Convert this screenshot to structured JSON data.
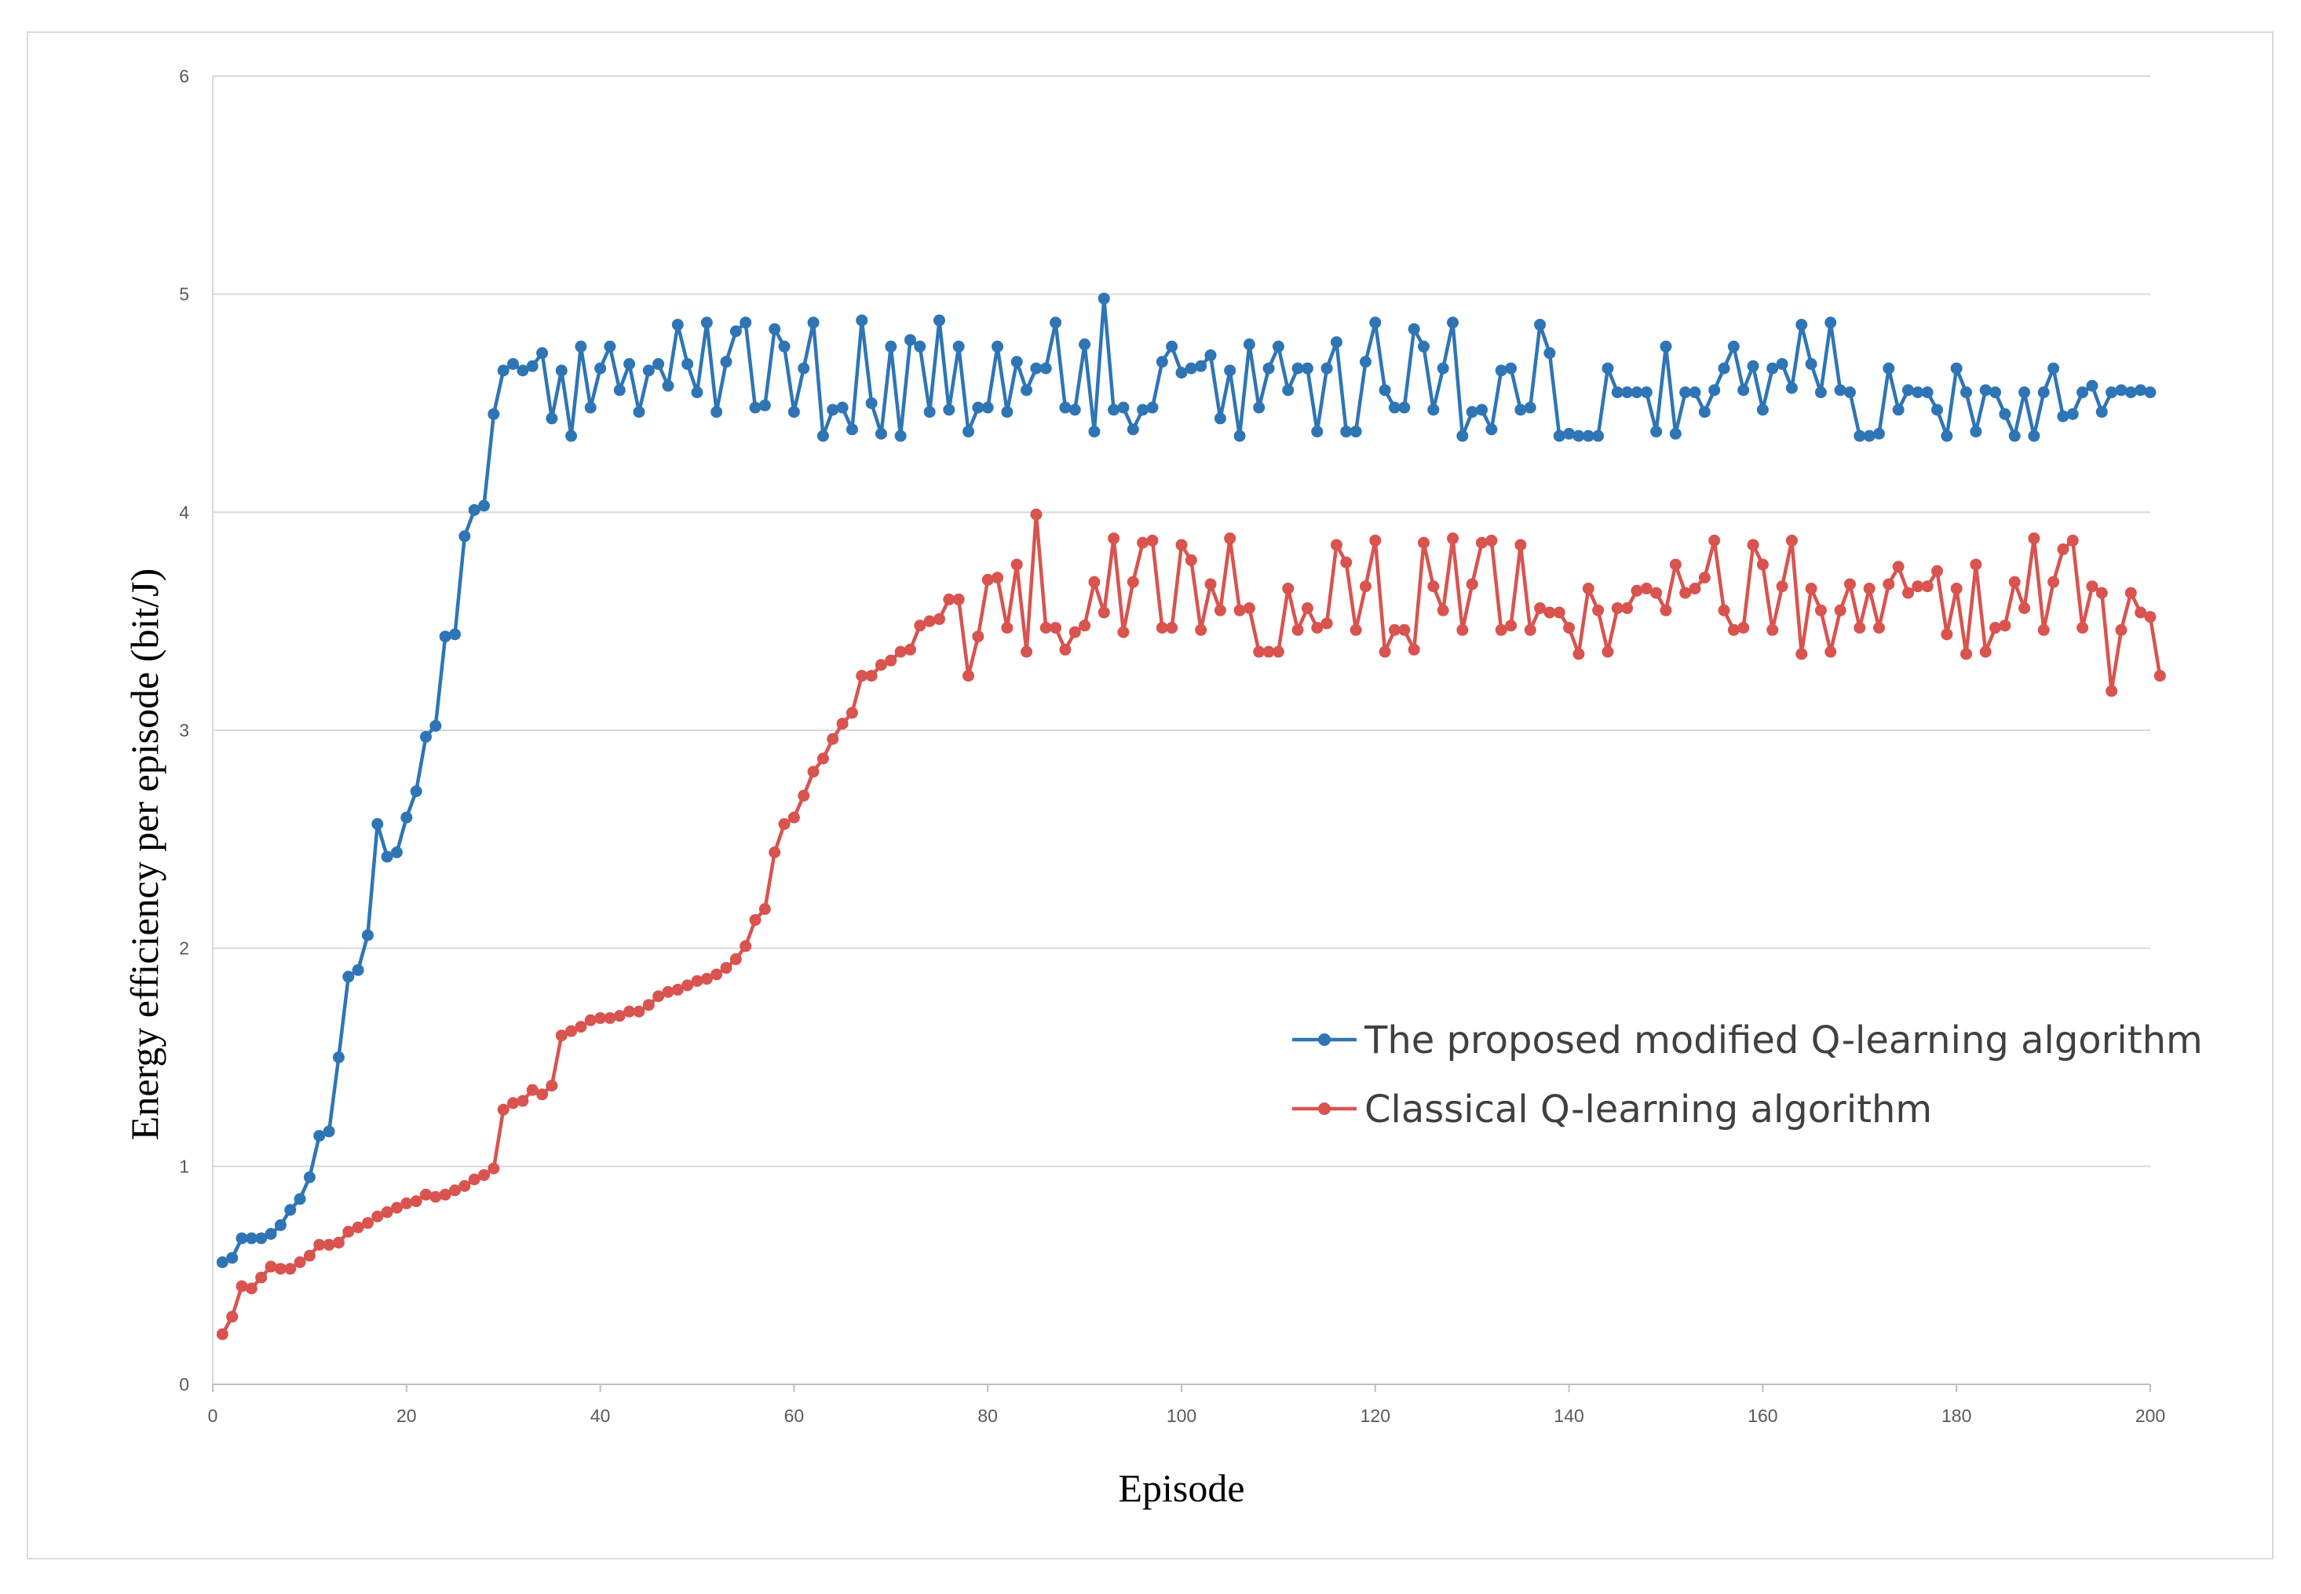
{
  "chart_data": {
    "type": "line",
    "title": "",
    "xlabel": "Episode",
    "ylabel": "Energy efficiency per episode (bit/J)",
    "xlim": [
      0,
      200
    ],
    "ylim": [
      0,
      6
    ],
    "xticks": [
      "0",
      "20",
      "40",
      "60",
      "80",
      "100",
      "120",
      "140",
      "160",
      "180",
      "200"
    ],
    "yticks": [
      "0",
      "1",
      "2",
      "3",
      "4",
      "5",
      "6"
    ],
    "grid": "horizontal",
    "legend_position": "right",
    "series": [
      {
        "name": "The proposed modified Q-learning algorithm",
        "color": "#2e75b6",
        "marker": "circle",
        "values": [
          0.56,
          0.58,
          0.67,
          0.67,
          0.67,
          0.69,
          0.73,
          0.8,
          0.85,
          0.95,
          1.14,
          1.16,
          1.5,
          1.87,
          1.9,
          2.06,
          2.57,
          2.42,
          2.44,
          2.6,
          2.72,
          2.97,
          3.02,
          3.43,
          3.44,
          3.89,
          4.01,
          4.03,
          4.45,
          4.65,
          4.68,
          4.65,
          4.67,
          4.73,
          4.43,
          4.65,
          4.35,
          4.76,
          4.48,
          4.66,
          4.76,
          4.56,
          4.68,
          4.46,
          4.65,
          4.68,
          4.58,
          4.86,
          4.68,
          4.55,
          4.87,
          4.46,
          4.69,
          4.83,
          4.87,
          4.48,
          4.49,
          4.84,
          4.76,
          4.46,
          4.66,
          4.87,
          4.35,
          4.47,
          4.48,
          4.38,
          4.88,
          4.5,
          4.36,
          4.76,
          4.35,
          4.79,
          4.76,
          4.46,
          4.88,
          4.47,
          4.76,
          4.37,
          4.48,
          4.48,
          4.76,
          4.46,
          4.69,
          4.56,
          4.66,
          4.66,
          4.87,
          4.48,
          4.47,
          4.77,
          4.37,
          4.98,
          4.47,
          4.48,
          4.38,
          4.47,
          4.48,
          4.69,
          4.76,
          4.64,
          4.66,
          4.67,
          4.72,
          4.43,
          4.65,
          4.35,
          4.77,
          4.48,
          4.66,
          4.76,
          4.56,
          4.66,
          4.66,
          4.37,
          4.66,
          4.78,
          4.37,
          4.37,
          4.69,
          4.87,
          4.56,
          4.48,
          4.48,
          4.84,
          4.76,
          4.47,
          4.66,
          4.87,
          4.35,
          4.46,
          4.47,
          4.38,
          4.65,
          4.66,
          4.47,
          4.48,
          4.86,
          4.73,
          4.35,
          4.36,
          4.35,
          4.35,
          4.35,
          4.66,
          4.55,
          4.55,
          4.55,
          4.55,
          4.37,
          4.76,
          4.36,
          4.55,
          4.55,
          4.46,
          4.56,
          4.66,
          4.76,
          4.56,
          4.67,
          4.47,
          4.66,
          4.68,
          4.57,
          4.86,
          4.68,
          4.55,
          4.87,
          4.56,
          4.55,
          4.35,
          4.35,
          4.36,
          4.66,
          4.47,
          4.56,
          4.55,
          4.55,
          4.47,
          4.35,
          4.66,
          4.55,
          4.37,
          4.56,
          4.55,
          4.45,
          4.35,
          4.55,
          4.35,
          4.55,
          4.66,
          4.44,
          4.45,
          4.55,
          4.58,
          4.46,
          4.55,
          4.56,
          4.55,
          4.56,
          4.55
        ]
      },
      {
        "name": "Classical Q-learning algorithm",
        "color": "#d9534f",
        "marker": "circle",
        "values": [
          0.23,
          0.31,
          0.45,
          0.44,
          0.49,
          0.54,
          0.53,
          0.53,
          0.56,
          0.59,
          0.64,
          0.64,
          0.65,
          0.7,
          0.72,
          0.74,
          0.77,
          0.79,
          0.81,
          0.83,
          0.84,
          0.87,
          0.86,
          0.87,
          0.89,
          0.91,
          0.94,
          0.96,
          0.99,
          1.26,
          1.29,
          1.3,
          1.35,
          1.33,
          1.37,
          1.6,
          1.62,
          1.64,
          1.67,
          1.68,
          1.68,
          1.69,
          1.71,
          1.71,
          1.74,
          1.78,
          1.8,
          1.81,
          1.83,
          1.85,
          1.86,
          1.88,
          1.91,
          1.95,
          2.01,
          2.13,
          2.18,
          2.44,
          2.57,
          2.6,
          2.7,
          2.81,
          2.87,
          2.96,
          3.03,
          3.08,
          3.25,
          3.25,
          3.3,
          3.32,
          3.36,
          3.37,
          3.48,
          3.5,
          3.51,
          3.6,
          3.6,
          3.25,
          3.43,
          3.69,
          3.7,
          3.47,
          3.76,
          3.36,
          3.99,
          3.47,
          3.47,
          3.37,
          3.45,
          3.48,
          3.68,
          3.54,
          3.88,
          3.45,
          3.68,
          3.86,
          3.87,
          3.47,
          3.47,
          3.85,
          3.78,
          3.46,
          3.67,
          3.55,
          3.88,
          3.55,
          3.56,
          3.36,
          3.36,
          3.36,
          3.65,
          3.46,
          3.56,
          3.47,
          3.49,
          3.85,
          3.77,
          3.46,
          3.66,
          3.87,
          3.36,
          3.46,
          3.46,
          3.37,
          3.86,
          3.66,
          3.55,
          3.88,
          3.46,
          3.67,
          3.86,
          3.87,
          3.46,
          3.48,
          3.85,
          3.46,
          3.56,
          3.54,
          3.54,
          3.47,
          3.35,
          3.65,
          3.55,
          3.36,
          3.56,
          3.56,
          3.64,
          3.65,
          3.63,
          3.55,
          3.76,
          3.63,
          3.65,
          3.7,
          3.87,
          3.55,
          3.46,
          3.47,
          3.85,
          3.76,
          3.46,
          3.66,
          3.87,
          3.35,
          3.65,
          3.55,
          3.36,
          3.55,
          3.67,
          3.47,
          3.65,
          3.47,
          3.67,
          3.75,
          3.63,
          3.66,
          3.66,
          3.73,
          3.44,
          3.65,
          3.35,
          3.76,
          3.36,
          3.47,
          3.48,
          3.68,
          3.56,
          3.88,
          3.46,
          3.68,
          3.83,
          3.87,
          3.47,
          3.66,
          3.63,
          3.18,
          3.46,
          3.63,
          3.54,
          3.52,
          3.25
        ]
      }
    ]
  }
}
